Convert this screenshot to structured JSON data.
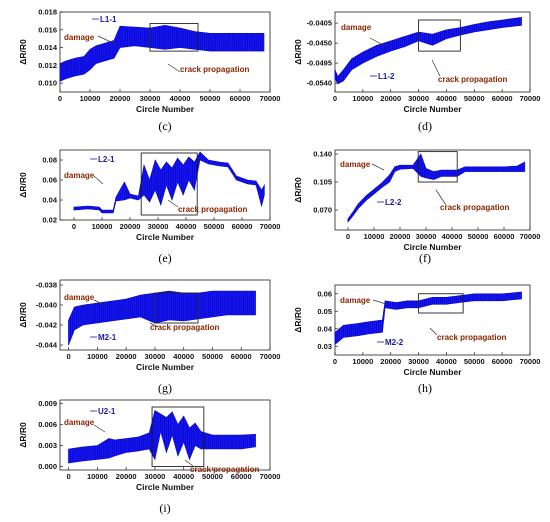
{
  "chart_data": [
    {
      "panel": "(c)",
      "type": "line",
      "series_label": "L1-1",
      "xlabel": "Circle Number",
      "ylabel": "ΔR/R0",
      "xlim": [
        0,
        70000
      ],
      "ylim": [
        0.009,
        0.018
      ],
      "xticks": [
        0,
        10000,
        20000,
        30000,
        40000,
        50000,
        60000,
        70000
      ],
      "yticks": [
        0.01,
        0.012,
        0.014,
        0.016,
        0.018
      ],
      "ytick_labels": [
        "0.010",
        "0.012",
        "0.014",
        "0.016",
        "0.018"
      ],
      "x": [
        0,
        2000,
        5000,
        8000,
        10000,
        12000,
        15000,
        18000,
        20000,
        25000,
        30000,
        35000,
        40000,
        45000,
        50000,
        55000,
        60000,
        65000,
        68000
      ],
      "y_min": [
        0.0102,
        0.0105,
        0.0108,
        0.011,
        0.0115,
        0.0122,
        0.0125,
        0.0128,
        0.014,
        0.0142,
        0.014,
        0.0138,
        0.014,
        0.0138,
        0.0136,
        0.0136,
        0.0136,
        0.0136,
        0.0136
      ],
      "y_max": [
        0.0122,
        0.0125,
        0.0128,
        0.013,
        0.0138,
        0.0142,
        0.0145,
        0.0148,
        0.0164,
        0.0163,
        0.0162,
        0.0165,
        0.0162,
        0.0158,
        0.0156,
        0.0156,
        0.0156,
        0.0156,
        0.0156
      ],
      "damage_label": "damage",
      "crack_label": "crack propagation",
      "crack_box_x": [
        30000,
        46000
      ],
      "crack_box_y": [
        0.0136,
        0.0167
      ]
    },
    {
      "panel": "(d)",
      "type": "line",
      "series_label": "L1-2",
      "xlabel": "Circle Number",
      "ylabel": "ΔR/R0",
      "xlim": [
        0,
        70000
      ],
      "ylim": [
        -0.056,
        -0.038
      ],
      "xticks": [
        0,
        10000,
        20000,
        30000,
        40000,
        50000,
        60000,
        70000
      ],
      "yticks": [
        -0.0405,
        -0.045,
        -0.0495,
        -0.054
      ],
      "ytick_labels": [
        "-0.0405",
        "-0.0450",
        "-0.0495",
        "-0.0540"
      ],
      "x": [
        0,
        1000,
        3000,
        6000,
        10000,
        15000,
        20000,
        25000,
        30000,
        35000,
        40000,
        45000,
        50000,
        55000,
        60000,
        67000
      ],
      "y_min": [
        -0.053,
        -0.0542,
        -0.0535,
        -0.051,
        -0.0495,
        -0.048,
        -0.0468,
        -0.0458,
        -0.0445,
        -0.0455,
        -0.044,
        -0.0432,
        -0.0425,
        -0.042,
        -0.0415,
        -0.041
      ],
      "y_max": [
        -0.051,
        -0.0525,
        -0.051,
        -0.0485,
        -0.047,
        -0.0455,
        -0.0445,
        -0.0435,
        -0.0425,
        -0.043,
        -0.042,
        -0.0415,
        -0.0408,
        -0.0402,
        -0.0398,
        -0.0392
      ],
      "damage_label": "damage",
      "crack_label": "crack propagation",
      "crack_box_x": [
        30000,
        45000
      ],
      "crack_box_y": [
        -0.0468,
        -0.0398
      ]
    },
    {
      "panel": "(e)",
      "type": "line",
      "series_label": "L2-1",
      "xlabel": "Circle Number",
      "ylabel": "ΔR/R0",
      "xlim": [
        -5000,
        70000
      ],
      "ylim": [
        0.02,
        0.09
      ],
      "xticks": [
        0,
        10000,
        20000,
        30000,
        40000,
        50000,
        60000,
        70000
      ],
      "yticks": [
        0.02,
        0.04,
        0.06,
        0.08
      ],
      "ytick_labels": [
        "0.02",
        "0.04",
        "0.06",
        "0.08"
      ],
      "x": [
        0,
        5000,
        9000,
        10000,
        14000,
        15000,
        18000,
        20000,
        23000,
        25000,
        27000,
        29000,
        31000,
        33000,
        35000,
        37000,
        39000,
        41000,
        43000,
        45000,
        48000,
        52000,
        55000,
        58000,
        60000,
        62000,
        65000,
        67000,
        68000
      ],
      "y_min": [
        0.03,
        0.031,
        0.03,
        0.027,
        0.027,
        0.039,
        0.04,
        0.042,
        0.04,
        0.045,
        0.038,
        0.05,
        0.035,
        0.055,
        0.04,
        0.058,
        0.045,
        0.06,
        0.05,
        0.08,
        0.076,
        0.074,
        0.073,
        0.06,
        0.058,
        0.056,
        0.055,
        0.034,
        0.045
      ],
      "y_max": [
        0.033,
        0.034,
        0.033,
        0.03,
        0.03,
        0.043,
        0.058,
        0.046,
        0.044,
        0.075,
        0.06,
        0.08,
        0.07,
        0.078,
        0.072,
        0.082,
        0.075,
        0.083,
        0.078,
        0.088,
        0.08,
        0.078,
        0.077,
        0.064,
        0.062,
        0.06,
        0.059,
        0.05,
        0.055
      ],
      "damage_label": "damage",
      "crack_label": "crack propagation",
      "crack_box_x": [
        24000,
        44000
      ],
      "crack_box_y": [
        0.025,
        0.087
      ]
    },
    {
      "panel": "(f)",
      "type": "line",
      "series_label": "L2-2",
      "xlabel": "Circle Number",
      "ylabel": "ΔR/R0",
      "xlim": [
        -5000,
        70000
      ],
      "ylim": [
        0.045,
        0.145
      ],
      "xticks": [
        0,
        10000,
        20000,
        30000,
        40000,
        50000,
        60000,
        70000
      ],
      "yticks": [
        0.07,
        0.105,
        0.14
      ],
      "ytick_labels": [
        "0.070",
        "0.105",
        "0.140"
      ],
      "x": [
        0,
        2000,
        4000,
        7000,
        10000,
        13000,
        16000,
        18000,
        20000,
        25000,
        28000,
        30000,
        33000,
        36000,
        40000,
        42000,
        45000,
        50000,
        55000,
        60000,
        65000,
        68000
      ],
      "y_min": [
        0.055,
        0.063,
        0.072,
        0.082,
        0.09,
        0.098,
        0.105,
        0.118,
        0.121,
        0.122,
        0.112,
        0.11,
        0.108,
        0.112,
        0.112,
        0.112,
        0.118,
        0.118,
        0.118,
        0.118,
        0.118,
        0.118
      ],
      "y_max": [
        0.059,
        0.068,
        0.078,
        0.088,
        0.096,
        0.104,
        0.114,
        0.124,
        0.126,
        0.126,
        0.14,
        0.122,
        0.118,
        0.12,
        0.12,
        0.12,
        0.124,
        0.124,
        0.124,
        0.124,
        0.125,
        0.13
      ],
      "damage_label": "damage",
      "crack_label": "crack propagation",
      "crack_box_x": [
        27000,
        42000
      ],
      "crack_box_y": [
        0.105,
        0.143
      ]
    },
    {
      "panel": "(g)",
      "type": "line",
      "series_label": "M2-1",
      "xlabel": "Circle Number",
      "ylabel": "ΔR/R0",
      "xlim": [
        -3000,
        70000
      ],
      "ylim": [
        -0.0445,
        -0.0375
      ],
      "xticks": [
        0,
        10000,
        20000,
        30000,
        40000,
        50000,
        60000,
        70000
      ],
      "yticks": [
        -0.038,
        -0.04,
        -0.042,
        -0.044
      ],
      "ytick_labels": [
        "-0.038",
        "-0.040",
        "-0.042",
        "-0.044"
      ],
      "x": [
        0,
        2000,
        5000,
        10000,
        15000,
        20000,
        25000,
        30000,
        35000,
        40000,
        45000,
        50000,
        55000,
        60000,
        65000
      ],
      "y_min": [
        -0.044,
        -0.0425,
        -0.042,
        -0.0418,
        -0.0416,
        -0.0414,
        -0.0412,
        -0.0418,
        -0.0415,
        -0.0416,
        -0.0414,
        -0.0412,
        -0.041,
        -0.041,
        -0.041
      ],
      "y_max": [
        -0.0415,
        -0.0402,
        -0.04,
        -0.0398,
        -0.0396,
        -0.0394,
        -0.039,
        -0.0388,
        -0.0386,
        -0.0388,
        -0.0388,
        -0.0386,
        -0.0386,
        -0.0386,
        -0.0386
      ],
      "damage_label": "damage",
      "crack_label": "crack propagation",
      "crack_box_x": [
        30000,
        45000
      ],
      "crack_box_y": [
        -0.0418,
        -0.0388
      ]
    },
    {
      "panel": "(h)",
      "type": "line",
      "series_label": "M2-2",
      "xlabel": "Circle Number",
      "ylabel": "ΔR/R0",
      "xlim": [
        0,
        70000
      ],
      "ylim": [
        0.025,
        0.065
      ],
      "xticks": [
        0,
        10000,
        20000,
        30000,
        40000,
        50000,
        60000,
        70000
      ],
      "yticks": [
        0.03,
        0.04,
        0.05,
        0.06
      ],
      "ytick_labels": [
        "0.03",
        "0.04",
        "0.05",
        "0.06"
      ],
      "x": [
        0,
        3000,
        8000,
        12000,
        17000,
        18000,
        22000,
        26000,
        30000,
        35000,
        40000,
        45000,
        50000,
        55000,
        60000,
        67000
      ],
      "y_min": [
        0.031,
        0.035,
        0.036,
        0.037,
        0.038,
        0.052,
        0.051,
        0.052,
        0.052,
        0.054,
        0.054,
        0.055,
        0.056,
        0.056,
        0.056,
        0.057
      ],
      "y_max": [
        0.038,
        0.042,
        0.043,
        0.044,
        0.045,
        0.056,
        0.055,
        0.056,
        0.056,
        0.058,
        0.058,
        0.059,
        0.06,
        0.06,
        0.06,
        0.061
      ],
      "damage_label": "damage",
      "crack_label": "crack propagation",
      "crack_box_x": [
        30000,
        46000
      ],
      "crack_box_y": [
        0.049,
        0.06
      ]
    },
    {
      "panel": "(i)",
      "type": "line",
      "series_label": "U2-1",
      "xlabel": "Circle Number",
      "ylabel": "ΔR/R0",
      "xlim": [
        -3000,
        70000
      ],
      "ylim": [
        -0.0005,
        0.0095
      ],
      "xticks": [
        0,
        10000,
        20000,
        30000,
        40000,
        50000,
        60000,
        70000
      ],
      "yticks": [
        0.0,
        0.003,
        0.006,
        0.009
      ],
      "ytick_labels": [
        "0.000",
        "0.003",
        "0.006",
        "0.009"
      ],
      "x": [
        0,
        5000,
        10000,
        14000,
        16000,
        20000,
        24000,
        28000,
        30000,
        32000,
        34000,
        36000,
        38000,
        40000,
        42000,
        44000,
        46000,
        50000,
        55000,
        60000,
        65000
      ],
      "y_min": [
        0.0005,
        0.0008,
        0.001,
        0.0012,
        0.0015,
        0.002,
        0.0022,
        0.0025,
        0.001,
        0.005,
        0.002,
        0.0045,
        0.0015,
        0.0035,
        0.001,
        0.003,
        0.0025,
        0.0025,
        0.0025,
        0.0025,
        0.0028
      ],
      "y_max": [
        0.0025,
        0.0028,
        0.003,
        0.004,
        0.0038,
        0.004,
        0.0042,
        0.0048,
        0.008,
        0.0075,
        0.007,
        0.0078,
        0.006,
        0.0072,
        0.0055,
        0.0062,
        0.005,
        0.0045,
        0.0045,
        0.0045,
        0.0046
      ],
      "damage_label": "damage",
      "crack_label": "crack propagation",
      "crack_box_x": [
        29000,
        47000
      ],
      "crack_box_y": [
        0.0,
        0.0085
      ]
    }
  ]
}
